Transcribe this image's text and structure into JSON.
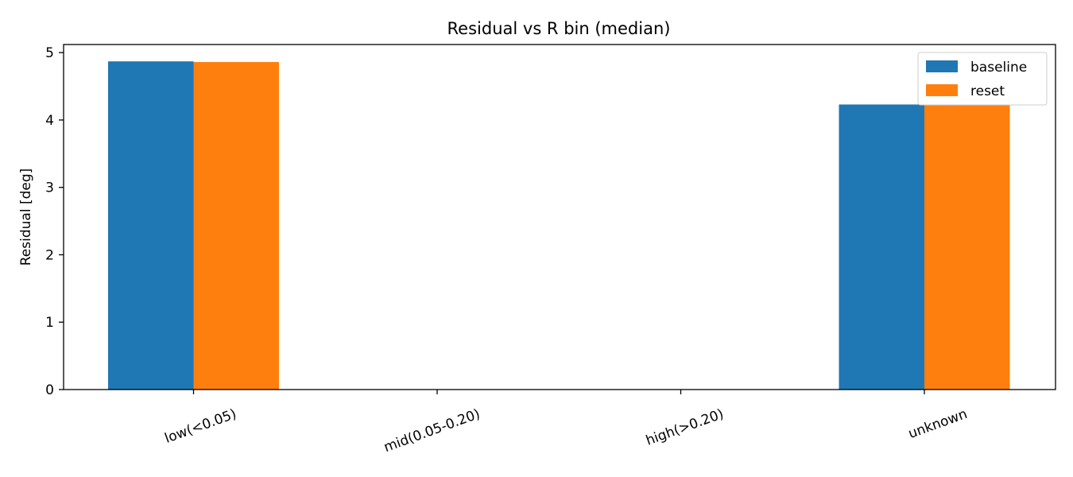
{
  "chart_data": {
    "type": "bar",
    "title": "Residual vs R bin (median)",
    "xlabel": "",
    "ylabel": "Residual [deg]",
    "categories": [
      "low(<0.05)",
      "mid(0.05-0.20)",
      "high(>0.20)",
      "unknown"
    ],
    "series": [
      {
        "name": "baseline",
        "color": "#1f77b4",
        "values": [
          4.87,
          0,
          0,
          4.23
        ]
      },
      {
        "name": "reset",
        "color": "#ff7f0e",
        "values": [
          4.86,
          0,
          0,
          4.23
        ]
      }
    ],
    "ylim": [
      0,
      5.12
    ],
    "yticks": [
      0,
      1,
      2,
      3,
      4,
      5
    ],
    "grid": false,
    "legend_position": "top-right"
  }
}
